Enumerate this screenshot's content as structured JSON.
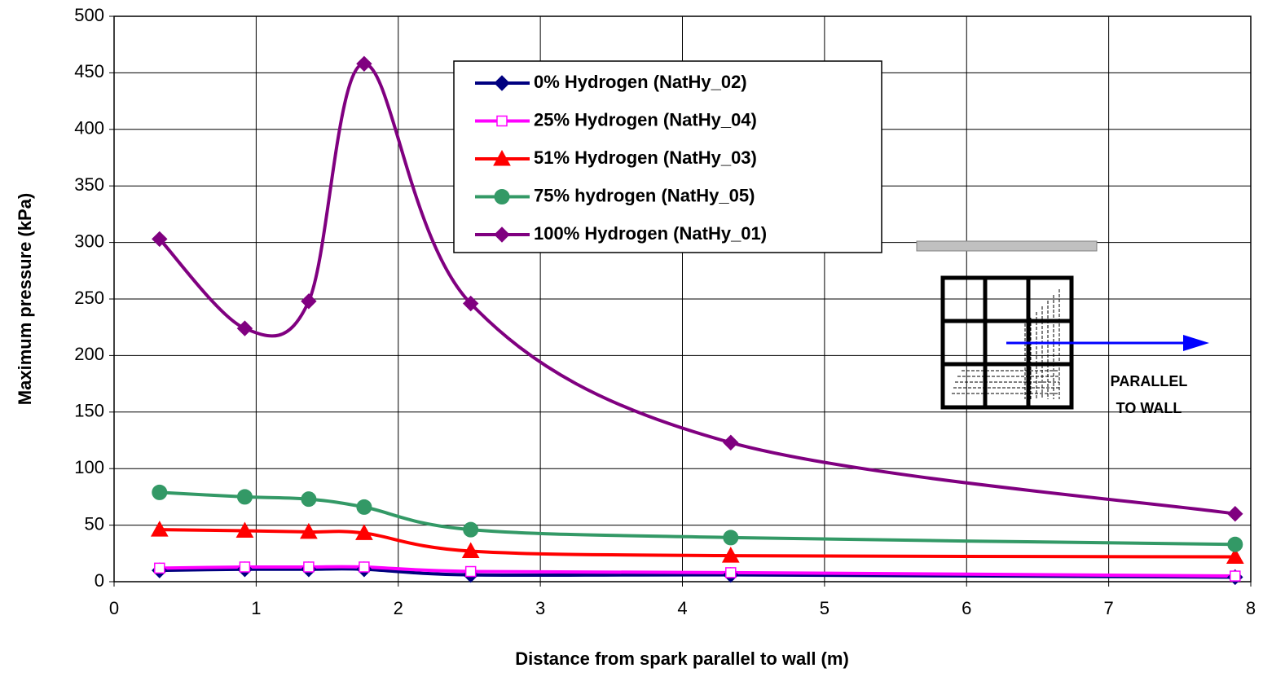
{
  "chart_data": {
    "type": "line",
    "xlabel": "Distance from spark parallel to wall (m)",
    "ylabel": "Maximum pressure (kPa)",
    "x": [
      0.32,
      0.92,
      1.37,
      1.76,
      2.51,
      4.34,
      7.89
    ],
    "series": [
      {
        "name": "0% Hydrogen (NatHy_02)",
        "color": "#000080",
        "marker": "diamond",
        "values": [
          10,
          11,
          11,
          11,
          6,
          6,
          4
        ]
      },
      {
        "name": "25% Hydrogen (NatHy_04)",
        "color": "#ff00ff",
        "marker": "open-square",
        "values": [
          12,
          13,
          13,
          13,
          9,
          8,
          5
        ]
      },
      {
        "name": "51% Hydrogen (NatHy_03)",
        "color": "#ff0000",
        "marker": "triangle",
        "values": [
          46,
          45,
          44,
          43,
          27,
          23,
          22
        ]
      },
      {
        "name": "75% hydrogen (NatHy_05)",
        "color": "#339966",
        "marker": "circle",
        "values": [
          79,
          75,
          73,
          66,
          46,
          39,
          33
        ]
      },
      {
        "name": "100% Hydrogen (NatHy_01)",
        "color": "#800080",
        "marker": "diamond",
        "values": [
          303,
          224,
          248,
          458,
          246,
          123,
          60
        ]
      }
    ],
    "xlim": [
      0,
      8
    ],
    "xticks": [
      0,
      1,
      2,
      3,
      4,
      5,
      6,
      7,
      8
    ],
    "ylim": [
      0,
      500
    ],
    "yticks": [
      0,
      50,
      100,
      150,
      200,
      250,
      300,
      350,
      400,
      450,
      500
    ],
    "grid": true,
    "smooth": true,
    "annotation": [
      "PARALLEL",
      "TO WALL"
    ]
  }
}
